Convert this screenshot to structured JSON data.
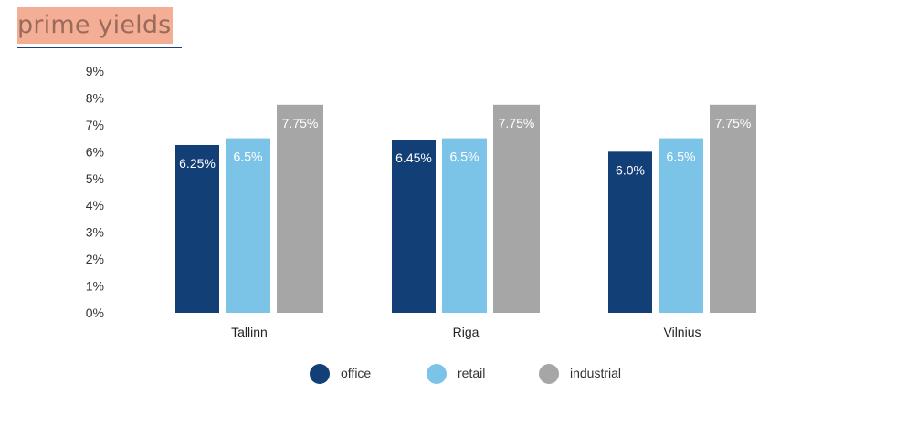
{
  "title": "prime yields",
  "chart_data": {
    "type": "bar",
    "categories": [
      "Tallinn",
      "Riga",
      "Vilnius"
    ],
    "series": [
      {
        "name": "office",
        "color": "#123f76",
        "values": [
          6.25,
          6.45,
          6.0
        ],
        "labels": [
          "6.25%",
          "6.45%",
          "6.0%"
        ]
      },
      {
        "name": "retail",
        "color": "#7cc3e8",
        "values": [
          6.5,
          6.5,
          6.5
        ],
        "labels": [
          "6.5%",
          "6.5%",
          "6.5%"
        ]
      },
      {
        "name": "industrial",
        "color": "#a6a6a6",
        "values": [
          7.75,
          7.75,
          7.75
        ],
        "labels": [
          "7.75%",
          "7.75%",
          "7.75%"
        ]
      }
    ],
    "ylim": [
      0,
      9
    ],
    "yticks": [
      "0%",
      "1%",
      "2%",
      "3%",
      "4%",
      "5%",
      "6%",
      "7%",
      "8%",
      "9%"
    ],
    "grid": false,
    "legend_position": "bottom"
  }
}
